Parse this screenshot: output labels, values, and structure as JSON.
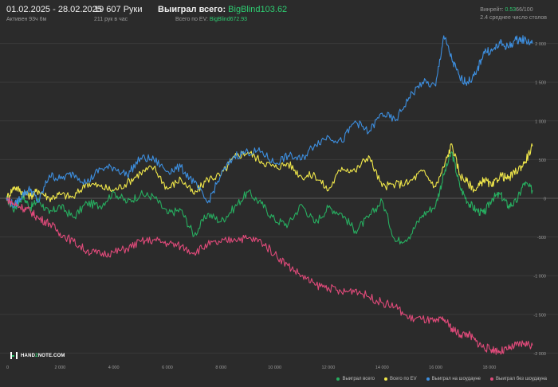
{
  "header": {
    "date_range": "01.02.2025 - 28.02.2025",
    "active": "Активен 93ч 6м",
    "hands": "19 607 Руки",
    "hands_rate": "211 рук в час",
    "won_total_label": "Выиграл всего:",
    "won_total_value": "BigBlind103.62",
    "ev_label": "Всего по EV:",
    "ev_value": "BigBlind672.93",
    "winrate_label": "Винрейт:",
    "winrate_value": "0.53",
    "winrate_suffix": "66/100",
    "tables": "2.4 среднее число столов"
  },
  "brand": {
    "prefix": "HAND",
    "highlight": "2",
    "suffix": "NOTE.COM"
  },
  "colors": {
    "background": "#2b2b2b",
    "gridline": "#3a3a3a",
    "zeroline": "#595959",
    "won_total": "#27ae60",
    "ev": "#f1e84a",
    "showdown": "#3d8fe0",
    "non_showdown": "#e04a7a",
    "positive_value": "#2ecc71"
  },
  "chart_data": {
    "type": "line",
    "x_ticks": [
      "0",
      "2 000",
      "4 000",
      "6 000",
      "8 000",
      "10 000",
      "12 000",
      "14 000",
      "16 000",
      "18 000"
    ],
    "x_tick_values": [
      0,
      2000,
      4000,
      6000,
      8000,
      10000,
      12000,
      14000,
      16000,
      18000
    ],
    "y_ticks": [
      "2 000",
      "1 500",
      "1 000",
      "500",
      "0",
      "-500",
      "-1 000",
      "-1 500",
      "-2 000"
    ],
    "y_tick_values": [
      2000,
      1500,
      1000,
      500,
      0,
      -500,
      -1000,
      -1500,
      -2000
    ],
    "xlim": [
      0,
      19607
    ],
    "ylim": [
      -2150,
      2150
    ],
    "grid": true,
    "legend_position": "bottom-right",
    "series": [
      {
        "name": "Выиграл всего",
        "color_key": "won_total",
        "x": [
          0,
          300,
          600,
          900,
          1200,
          1600,
          2000,
          2500,
          3000,
          3500,
          4000,
          4500,
          5000,
          5500,
          6000,
          6500,
          7000,
          7500,
          8000,
          8500,
          9000,
          9500,
          10000,
          10500,
          11000,
          11500,
          12000,
          12500,
          13000,
          13500,
          14000,
          14500,
          15000,
          15500,
          16000,
          16300,
          16600,
          16900,
          17200,
          17500,
          17800,
          18100,
          18400,
          18700,
          19000,
          19300,
          19607
        ],
        "y": [
          0,
          -150,
          30,
          -120,
          -20,
          -200,
          -100,
          -250,
          -60,
          -100,
          80,
          -50,
          50,
          20,
          -200,
          -150,
          -480,
          -200,
          -300,
          -120,
          80,
          -70,
          -280,
          -340,
          -80,
          -320,
          -120,
          -200,
          -420,
          -250,
          -30,
          -560,
          -500,
          -220,
          -90,
          300,
          600,
          150,
          -50,
          -150,
          -200,
          0,
          50,
          -100,
          -50,
          200,
          103
        ]
      },
      {
        "name": "Всего по EV",
        "color_key": "ev",
        "x": [
          0,
          300,
          600,
          900,
          1200,
          1600,
          2000,
          2500,
          3000,
          3500,
          4000,
          4500,
          5000,
          5500,
          6000,
          6500,
          7000,
          7500,
          8000,
          8500,
          9000,
          9500,
          10000,
          10500,
          11000,
          11500,
          12000,
          12500,
          13000,
          13500,
          14000,
          14500,
          15000,
          15500,
          16000,
          16300,
          16600,
          16900,
          17200,
          17500,
          17800,
          18100,
          18400,
          18700,
          19000,
          19300,
          19607
        ],
        "y": [
          0,
          150,
          80,
          30,
          100,
          0,
          50,
          10,
          200,
          150,
          100,
          200,
          330,
          400,
          120,
          250,
          50,
          250,
          300,
          530,
          600,
          480,
          400,
          450,
          280,
          300,
          100,
          400,
          350,
          550,
          150,
          180,
          200,
          350,
          150,
          400,
          700,
          300,
          200,
          100,
          250,
          150,
          300,
          250,
          350,
          450,
          673
        ]
      },
      {
        "name": "Выиграл на шоудауне",
        "color_key": "showdown",
        "x": [
          0,
          300,
          600,
          900,
          1200,
          1600,
          2000,
          2500,
          3000,
          3500,
          4000,
          4500,
          5000,
          5500,
          6000,
          6500,
          7000,
          7500,
          8000,
          8500,
          9000,
          9500,
          10000,
          10500,
          11000,
          11500,
          12000,
          12500,
          13000,
          13500,
          14000,
          14500,
          15000,
          15500,
          16000,
          16300,
          16600,
          16900,
          17200,
          17500,
          17800,
          18100,
          18400,
          18700,
          19000,
          19300,
          19607
        ],
        "y": [
          0,
          -100,
          50,
          120,
          -50,
          300,
          250,
          320,
          200,
          380,
          400,
          300,
          520,
          500,
          350,
          400,
          200,
          -60,
          300,
          550,
          600,
          600,
          450,
          550,
          500,
          700,
          800,
          730,
          1000,
          850,
          1100,
          1000,
          1300,
          1500,
          1450,
          2100,
          1800,
          1550,
          1500,
          1600,
          1900,
          1900,
          2000,
          1950,
          2050,
          2050,
          2000
        ]
      },
      {
        "name": "Выиграл без шоудауна",
        "color_key": "non_showdown",
        "x": [
          0,
          300,
          600,
          900,
          1200,
          1600,
          2000,
          2500,
          3000,
          3500,
          4000,
          4500,
          5000,
          5500,
          6000,
          6500,
          7000,
          7500,
          8000,
          8500,
          9000,
          9500,
          10000,
          10500,
          11000,
          11500,
          12000,
          12500,
          13000,
          13500,
          14000,
          14500,
          15000,
          15500,
          16000,
          16300,
          16600,
          16900,
          17200,
          17500,
          17800,
          18100,
          18400,
          18700,
          19000,
          19300,
          19607
        ],
        "y": [
          0,
          -80,
          -120,
          -170,
          -260,
          -320,
          -450,
          -560,
          -680,
          -720,
          -700,
          -650,
          -560,
          -540,
          -580,
          -620,
          -700,
          -600,
          -570,
          -520,
          -520,
          -560,
          -720,
          -870,
          -1000,
          -1120,
          -1150,
          -1220,
          -1180,
          -1270,
          -1350,
          -1400,
          -1550,
          -1560,
          -1600,
          -1560,
          -1680,
          -1760,
          -1750,
          -1850,
          -1930,
          -1950,
          -1980,
          -1950,
          -1900,
          -1870,
          -1900
        ]
      }
    ]
  }
}
